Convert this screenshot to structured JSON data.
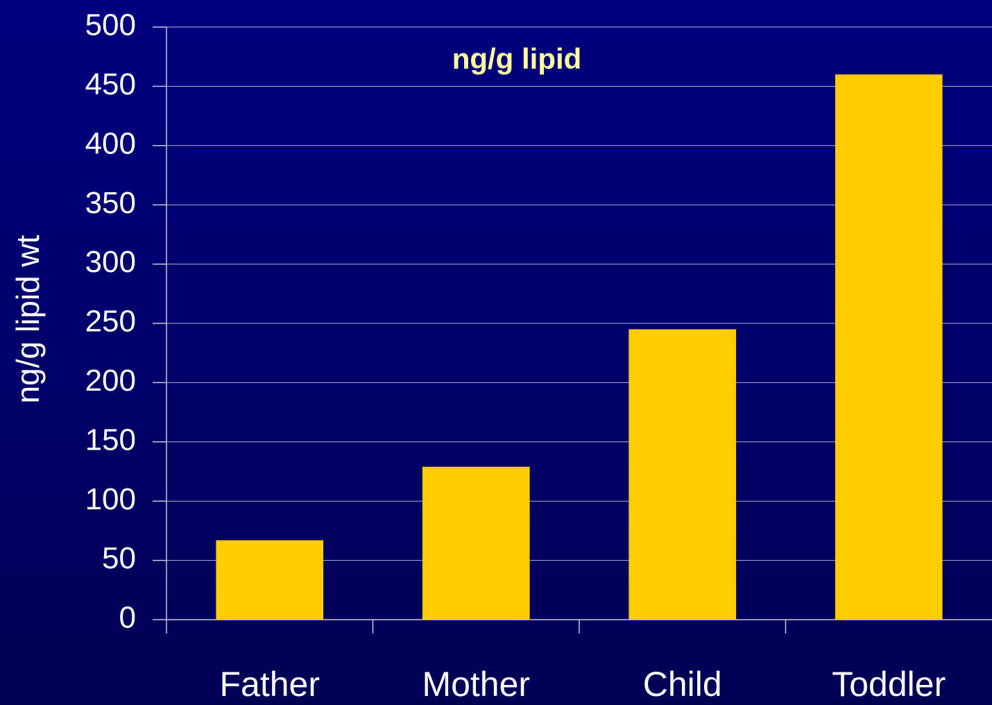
{
  "chart_data": {
    "type": "bar",
    "annotation": "ng/g lipid",
    "y_label": "ng/g lipid wt",
    "categories": [
      "Father",
      "Mother",
      "Child",
      "Toddler"
    ],
    "values": [
      67,
      129,
      245,
      460
    ],
    "color": "#ffcc00",
    "ylim": [
      0,
      500
    ],
    "yticks": [
      0,
      50,
      100,
      150,
      200,
      250,
      300,
      350,
      400,
      450,
      500
    ],
    "grid": true
  }
}
